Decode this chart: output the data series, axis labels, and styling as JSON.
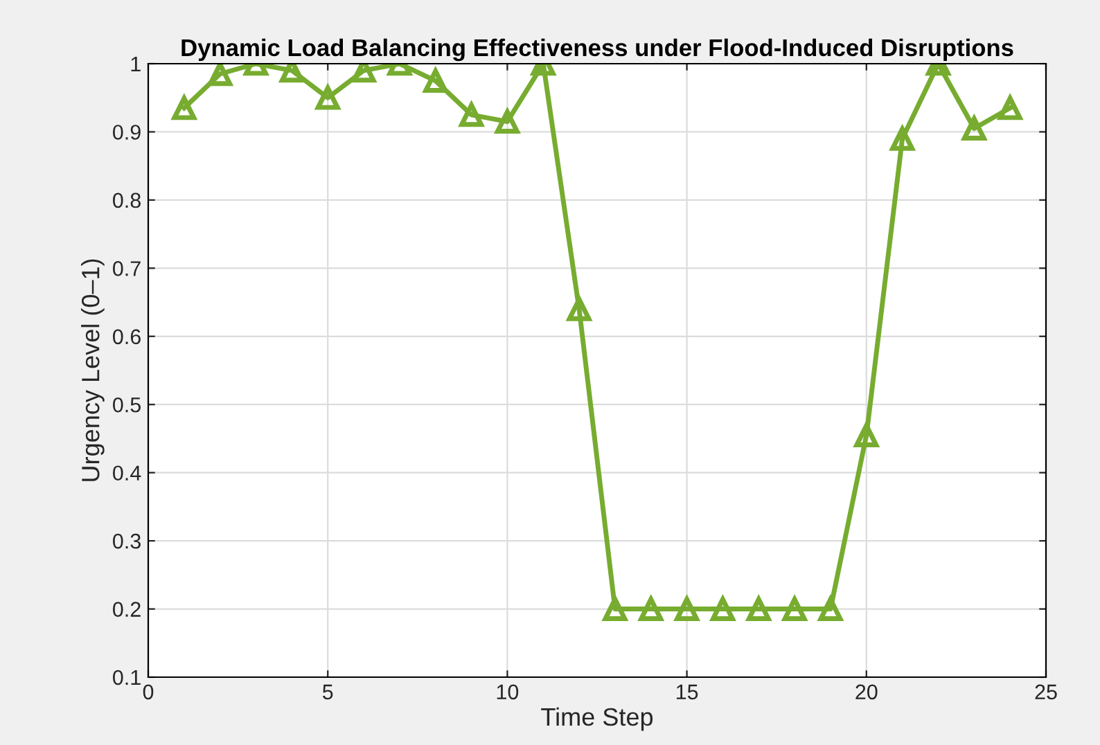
{
  "chart_data": {
    "type": "line",
    "title": "Dynamic Load Balancing Effectiveness under Flood-Induced Disruptions",
    "xlabel": "Time Step",
    "ylabel": "Urgency Level (0–1)",
    "x": [
      1,
      2,
      3,
      4,
      5,
      6,
      7,
      8,
      9,
      10,
      11,
      12,
      13,
      14,
      15,
      16,
      17,
      18,
      19,
      20,
      21,
      22,
      23,
      24
    ],
    "series": [
      {
        "color": "#77ac30",
        "values": [
          0.935,
          0.985,
          1.0,
          0.99,
          0.95,
          0.99,
          1.0,
          0.975,
          0.925,
          0.915,
          1.0,
          0.64,
          0.2,
          0.2,
          0.2,
          0.2,
          0.2,
          0.2,
          0.2,
          0.455,
          0.89,
          1.0,
          0.905,
          0.935
        ]
      }
    ],
    "xlim": [
      0,
      25
    ],
    "xticks": [
      0,
      5,
      10,
      15,
      20,
      25
    ],
    "ylim": [
      0.1,
      1
    ],
    "yticks": [
      0.1,
      0.2,
      0.3,
      0.4,
      0.5,
      0.6,
      0.7,
      0.8,
      0.9,
      1
    ],
    "grid": true,
    "marker": "triangle",
    "line_style": "solid",
    "legend": false
  }
}
